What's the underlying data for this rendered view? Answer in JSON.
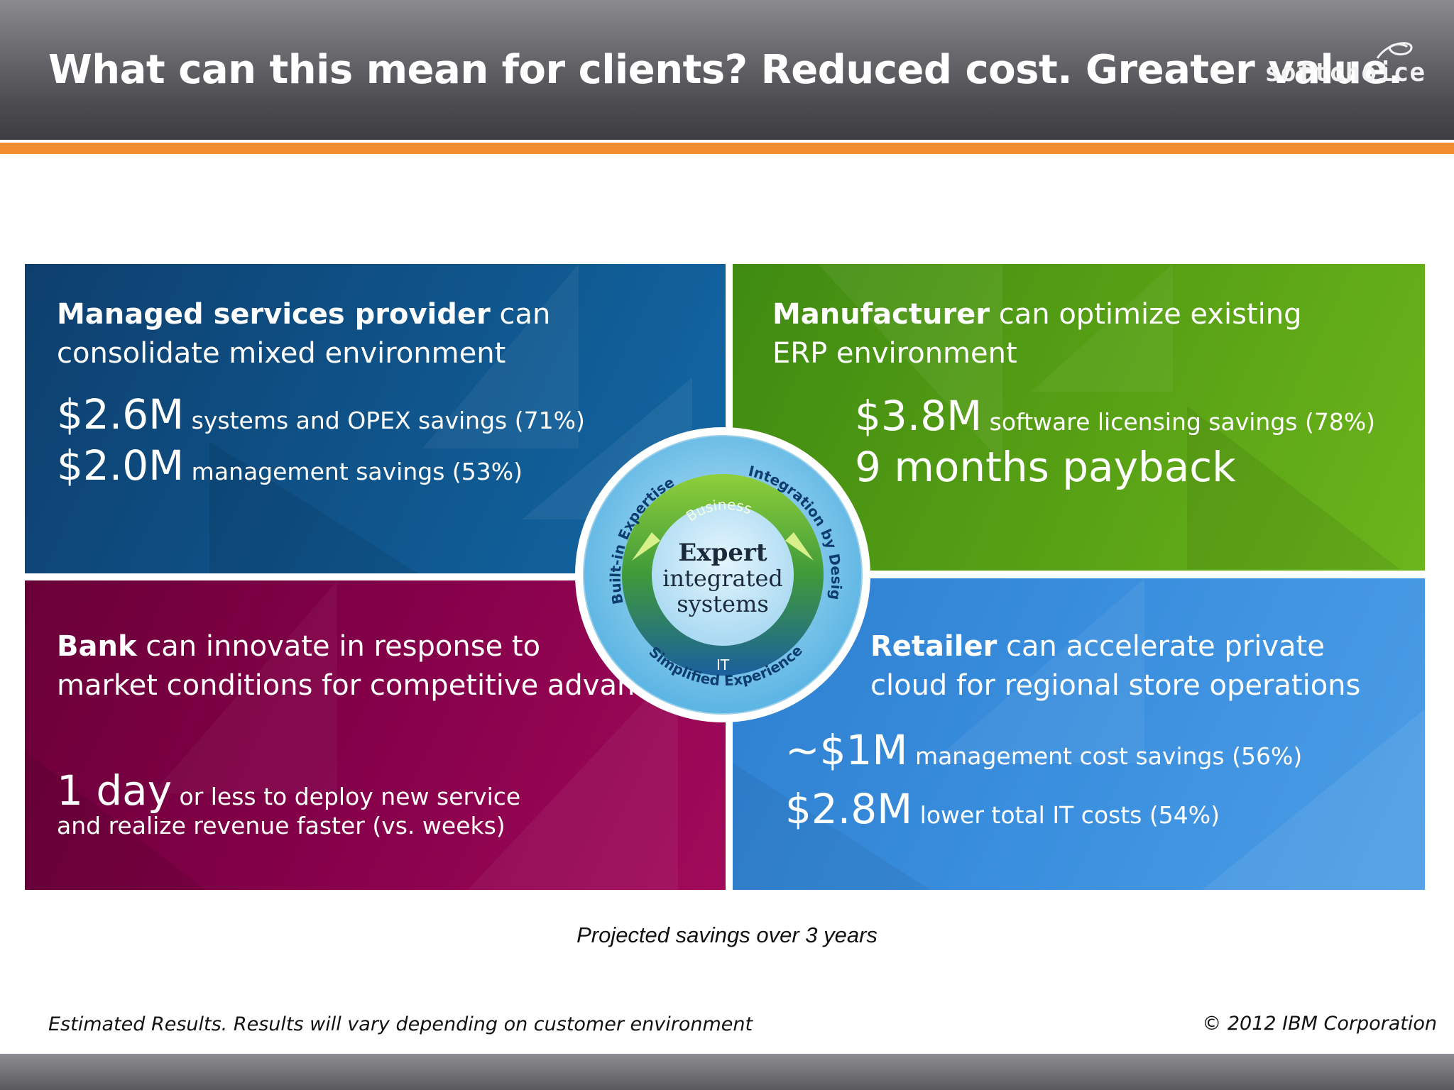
{
  "header": {
    "title": "What can this mean for clients? Reduced cost. Greater value.",
    "logo_text": "softchoice"
  },
  "panels": {
    "msp": {
      "bold": "Managed services provider",
      "rest1": " can",
      "line2": "consolidate mixed environment",
      "stats": [
        {
          "big": "$2.6M",
          "small": " systems and OPEX savings (71%)"
        },
        {
          "big": "$2.0M",
          "small": " management savings (53%)"
        }
      ]
    },
    "manufacturer": {
      "bold": "Manufacturer",
      "rest1": " can optimize existing",
      "line2": "ERP environment",
      "stats": [
        {
          "big": "$3.8M",
          "small": " software licensing savings (78%)"
        },
        {
          "big": "9 months payback",
          "small": ""
        }
      ]
    },
    "bank": {
      "bold": "Bank",
      "rest1": " can innovate in response to",
      "line2": "market conditions for competitive advantage",
      "stats": [
        {
          "big": "1 day",
          "small": " or less to deploy new service"
        },
        {
          "big": "",
          "small": "and realize revenue faster (vs. weeks)"
        }
      ]
    },
    "retailer": {
      "bold": "Retailer",
      "rest1": " can accelerate private",
      "line2": "cloud for regional store operations",
      "stats": [
        {
          "big": "~$1M",
          "small": " management cost savings (56%)"
        },
        {
          "big": "$2.8M",
          "small": "  lower total IT costs (54%)"
        }
      ]
    }
  },
  "wheel": {
    "center_line1": "Expert",
    "center_line2": "integrated",
    "center_line3": "systems",
    "inner_top": "Business",
    "inner_bottom": "IT",
    "outer_left": "Built-in Expertise",
    "outer_right": "Integration by Design",
    "outer_bottom": "Simplified Experience"
  },
  "caption": "Projected savings over 3 years",
  "footer": {
    "disclaimer": "Estimated Results.  Results will vary depending on customer environment",
    "copyright": "© 2012 IBM Corporation"
  },
  "colors": {
    "orange_bar": "#f18d2f",
    "panel_dark_blue": "#0f5186",
    "panel_green": "#569f14",
    "panel_magenta": "#85004a",
    "panel_light_blue": "#3a8fde"
  }
}
